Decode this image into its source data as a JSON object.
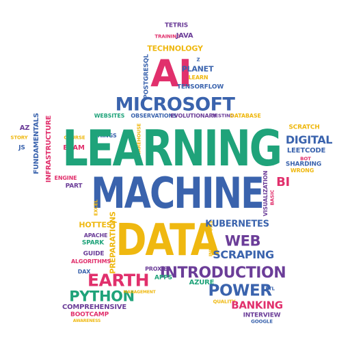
{
  "colors": {
    "green": "#1fa37a",
    "blue": "#3a63ad",
    "pink": "#e1306c",
    "purple": "#6b3d98",
    "gold": "#efb810"
  },
  "words": {
    "tetris": "TETRIS",
    "training": "TRAINING",
    "java": "JAVA",
    "technology": "TECHNOLOGY",
    "z": "Z",
    "postgresql": "POSTGRESQL",
    "ai": "AI",
    "planet": "PLANET",
    "learn": "LEARN",
    "tensorflow": "TENSORFLOW",
    "microsoft": "MICROSOFT",
    "websites": "WEBSITES",
    "observations": "OBSERVATIONS",
    "evolutionary": "EVOLUTIONARY",
    "testing": "TESTING",
    "database": "DATABASE",
    "az": "AZ",
    "story": "STORY",
    "js": "JS",
    "fundamentals": "FUNDAMENTALS",
    "infrastructure": "INFRASTRUCTURE",
    "course": "COURSE",
    "exam": "EXAM",
    "things": "THINGS",
    "warehouse": "WAREHOUSE",
    "learning": "LEARNING",
    "scratch": "SCRATCH",
    "digital": "DIGITAL",
    "leetcode": "LEETCODE",
    "bot": "BOT",
    "sharding": "SHARDING",
    "wrong": "WRONG",
    "engine": "ENGINE",
    "part": "PART",
    "machine": "MACHINE",
    "bi": "BI",
    "visualization": "VISUALIZATION",
    "basic": "BASIC",
    "excel": "EXCEL",
    "hottest": "HOTTEST",
    "apache": "APACHE",
    "spark": "SPARK",
    "preparations": "PREPARATIONS",
    "data": "DATA",
    "innovations": "INNOVATIONS",
    "kubernetes": "KUBERNETES",
    "web": "WEB",
    "scraping": "SCRAPING",
    "guide": "GUIDE",
    "algorithms": "ALGORITHMS",
    "proxies": "PROXIES",
    "introduction": "INTRODUCTION",
    "dax": "DAX",
    "earth": "EARTH",
    "apps": "APPS",
    "azure": "AZURE",
    "power": "POWER",
    "etl": "ETL",
    "python": "PYTHON",
    "management": "MANAGEMENT",
    "quality": "QUALITY",
    "banking": "BANKING",
    "comprehensive": "COMPREHENSIVE",
    "interview": "INTERVIEW",
    "bootcamp": "BOOTCAMP",
    "awareness": "AWARENESS",
    "google": "GOOGLE"
  }
}
